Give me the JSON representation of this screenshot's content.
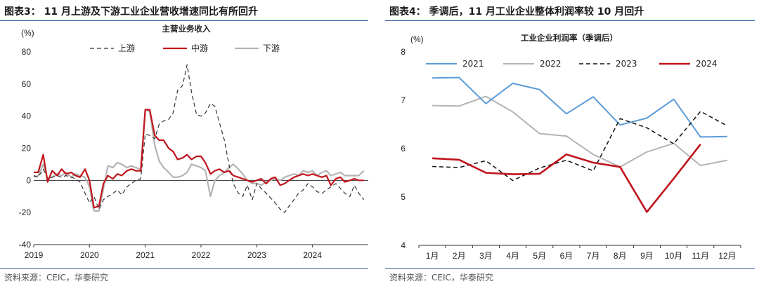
{
  "left": {
    "fig_title": "图表3：   11 月上游及下游工业企业营收增速同比有所回升",
    "source": "资料来源：CEIC，华泰研究",
    "chart_data": {
      "type": "line",
      "title": "主营业务收入",
      "ylabel": "(%)",
      "ylim": [
        -40,
        80
      ],
      "yticks": [
        -40,
        -20,
        0,
        20,
        40,
        60,
        80
      ],
      "xlim": [
        2019.0,
        2025.0
      ],
      "xticks": [
        "2019",
        "2020",
        "2021",
        "2022",
        "2023",
        "2024"
      ],
      "series": [
        {
          "name": "上游",
          "color": "#333333",
          "dash": "dashed",
          "x": [
            2019.0,
            2019.08,
            2019.17,
            2019.25,
            2019.33,
            2019.42,
            2019.5,
            2019.58,
            2019.67,
            2019.75,
            2019.83,
            2019.92,
            2020.0,
            2020.08,
            2020.17,
            2020.25,
            2020.33,
            2020.42,
            2020.5,
            2020.58,
            2020.67,
            2020.75,
            2020.83,
            2020.92,
            2021.0,
            2021.08,
            2021.17,
            2021.25,
            2021.33,
            2021.42,
            2021.5,
            2021.58,
            2021.67,
            2021.75,
            2021.83,
            2021.92,
            2022.0,
            2022.08,
            2022.17,
            2022.25,
            2022.33,
            2022.42,
            2022.5,
            2022.58,
            2022.67,
            2022.75,
            2022.83,
            2022.92,
            2023.0,
            2023.08,
            2023.17,
            2023.25,
            2023.33,
            2023.42,
            2023.5,
            2023.58,
            2023.67,
            2023.75,
            2023.83,
            2023.92,
            2024.0,
            2024.08,
            2024.17,
            2024.25,
            2024.33,
            2024.42,
            2024.5,
            2024.58,
            2024.67,
            2024.75,
            2024.83,
            2024.92
          ],
          "values": [
            3,
            2,
            7,
            1,
            2,
            3,
            2,
            3,
            2,
            1,
            -1,
            -8,
            -14,
            -10,
            -18,
            -12,
            -10,
            -8,
            -6,
            -9,
            -4,
            -2,
            0,
            1,
            29,
            28,
            26,
            35,
            37,
            38,
            42,
            56,
            59,
            72,
            55,
            41,
            40,
            42,
            48,
            46,
            36,
            25,
            10,
            -2,
            -8,
            -10,
            -3,
            -12,
            -2,
            -5,
            -8,
            -11,
            -14,
            -18,
            -20,
            -16,
            -12,
            -8,
            -6,
            -2,
            -4,
            -7,
            -8,
            -6,
            -4,
            -2,
            -5,
            -8,
            -10,
            -3,
            -8,
            -12
          ]
        },
        {
          "name": "中游",
          "color": "#c0141c",
          "dash": "solid",
          "x": [
            2019.0,
            2019.08,
            2019.17,
            2019.25,
            2019.33,
            2019.42,
            2019.5,
            2019.58,
            2019.67,
            2019.75,
            2019.83,
            2019.92,
            2020.0,
            2020.08,
            2020.17,
            2020.25,
            2020.33,
            2020.42,
            2020.5,
            2020.58,
            2020.67,
            2020.75,
            2020.83,
            2020.92,
            2021.0,
            2021.08,
            2021.17,
            2021.25,
            2021.33,
            2021.42,
            2021.5,
            2021.58,
            2021.67,
            2021.75,
            2021.83,
            2021.92,
            2022.0,
            2022.08,
            2022.17,
            2022.25,
            2022.33,
            2022.42,
            2022.5,
            2022.58,
            2022.67,
            2022.75,
            2022.83,
            2022.92,
            2023.0,
            2023.08,
            2023.17,
            2023.25,
            2023.33,
            2023.42,
            2023.5,
            2023.58,
            2023.67,
            2023.75,
            2023.83,
            2023.92,
            2024.0,
            2024.08,
            2024.17,
            2024.25,
            2024.33,
            2024.42,
            2024.5,
            2024.58,
            2024.67,
            2024.75,
            2024.83,
            2024.92
          ],
          "values": [
            5,
            5,
            16,
            -1,
            6,
            3,
            7,
            4,
            5,
            3,
            2,
            7,
            0,
            -17,
            -16,
            -2,
            3,
            1,
            4,
            3,
            6,
            7,
            6,
            6,
            44,
            44,
            28,
            25,
            25,
            20,
            18,
            13,
            14,
            16,
            13,
            15,
            15,
            11,
            4,
            6,
            7,
            5,
            6,
            3,
            2,
            1,
            0,
            -1,
            0,
            1,
            -2,
            1,
            2,
            -3,
            -2,
            0,
            2,
            3,
            4,
            3,
            4,
            3,
            2,
            3,
            -3,
            1,
            2,
            -1,
            0,
            1,
            0,
            0
          ]
        },
        {
          "name": "下游",
          "color": "#b4b4b4",
          "dash": "solid",
          "x": [
            2019.0,
            2019.08,
            2019.17,
            2019.25,
            2019.33,
            2019.42,
            2019.5,
            2019.58,
            2019.67,
            2019.75,
            2019.83,
            2019.92,
            2020.0,
            2020.08,
            2020.17,
            2020.25,
            2020.33,
            2020.42,
            2020.5,
            2020.58,
            2020.67,
            2020.75,
            2020.83,
            2020.92,
            2021.0,
            2021.08,
            2021.17,
            2021.25,
            2021.33,
            2021.42,
            2021.5,
            2021.58,
            2021.67,
            2021.75,
            2021.83,
            2021.92,
            2022.0,
            2022.08,
            2022.17,
            2022.25,
            2022.33,
            2022.42,
            2022.5,
            2022.58,
            2022.67,
            2022.75,
            2022.83,
            2022.92,
            2023.0,
            2023.08,
            2023.17,
            2023.25,
            2023.33,
            2023.42,
            2023.5,
            2023.58,
            2023.67,
            2023.75,
            2023.83,
            2023.92,
            2024.0,
            2024.08,
            2024.17,
            2024.25,
            2024.33,
            2024.42,
            2024.5,
            2024.58,
            2024.67,
            2024.75,
            2024.83,
            2024.92
          ],
          "values": [
            2,
            3,
            10,
            1,
            2,
            4,
            3,
            5,
            2,
            4,
            3,
            2,
            -4,
            -19,
            -19,
            -5,
            9,
            8,
            11,
            10,
            8,
            9,
            8,
            7,
            44,
            43,
            22,
            12,
            8,
            5,
            2,
            2,
            3,
            5,
            10,
            9,
            8,
            6,
            -10,
            0,
            3,
            5,
            8,
            10,
            7,
            4,
            0,
            -2,
            -2,
            -3,
            -1,
            0,
            1,
            0,
            2,
            3,
            4,
            3,
            6,
            5,
            6,
            3,
            5,
            6,
            3,
            4,
            5,
            3,
            3,
            3,
            3,
            6
          ]
        }
      ]
    }
  },
  "right": {
    "fig_title": "图表4：   季调后，11 月工业企业整体利润率较 10 月回升",
    "source": "资料来源：CEIC，华泰研究",
    "chart_data": {
      "type": "line",
      "title": "工业企业利润率（季调后）",
      "ylabel": "(%)",
      "ylim": [
        4,
        8
      ],
      "yticks": [
        4,
        5,
        6,
        7,
        8
      ],
      "categories": [
        "1月",
        "2月",
        "3月",
        "4月",
        "5月",
        "6月",
        "7月",
        "8月",
        "9月",
        "10月",
        "11月",
        "12月"
      ],
      "series": [
        {
          "name": "2021",
          "color": "#5b9bd5",
          "dash": "solid",
          "values": [
            7.46,
            7.47,
            6.93,
            7.35,
            7.22,
            6.72,
            7.07,
            6.49,
            6.63,
            7.02,
            6.24,
            6.25
          ]
        },
        {
          "name": "2022",
          "color": "#b4b4b4",
          "dash": "solid",
          "values": [
            6.89,
            6.88,
            7.08,
            6.76,
            6.31,
            6.26,
            5.88,
            5.62,
            5.93,
            6.11,
            5.65,
            5.76
          ]
        },
        {
          "name": "2023",
          "color": "#111111",
          "dash": "dashed",
          "values": [
            5.63,
            5.61,
            5.75,
            5.34,
            5.6,
            5.76,
            5.54,
            6.62,
            6.43,
            6.1,
            6.77,
            6.47
          ]
        },
        {
          "name": "2024",
          "color": "#c0141c",
          "dash": "solid",
          "values": [
            5.8,
            5.77,
            5.5,
            5.47,
            5.48,
            5.88,
            5.71,
            5.62,
            4.69,
            5.38,
            6.09,
            null
          ]
        }
      ]
    }
  }
}
